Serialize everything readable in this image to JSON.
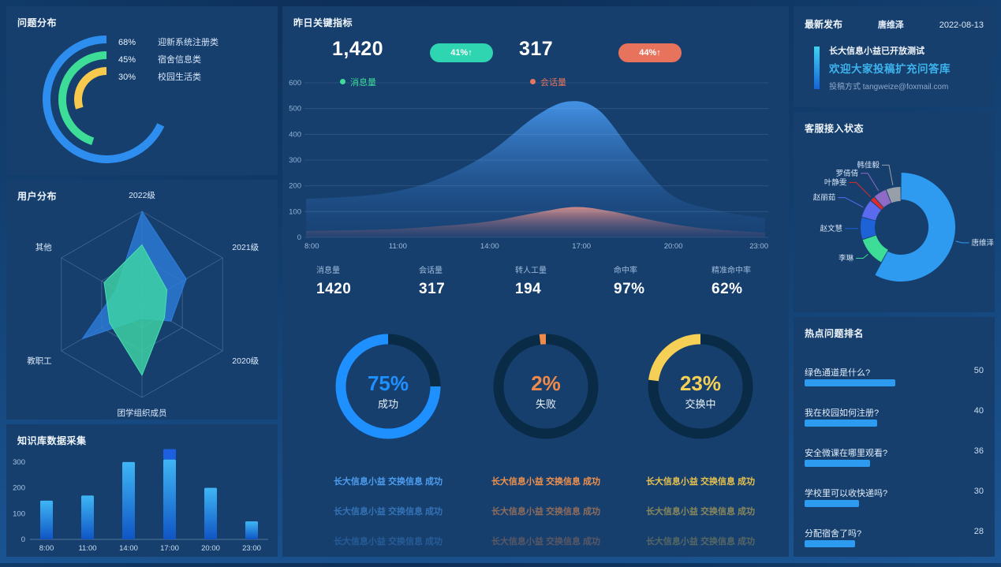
{
  "panels": {
    "problem": {
      "title": "问题分布"
    },
    "radar": {
      "title": "用户分布"
    },
    "collect": {
      "title": "知识库数据采集"
    },
    "kpi": {
      "title": "昨日关键指标",
      "headline": [
        {
          "value": "1,420",
          "badge": "41%↑",
          "badge_color": "#2fd5b0"
        },
        {
          "value": "317",
          "badge": "44%↑",
          "badge_color": "#e8735c"
        }
      ],
      "legend": [
        {
          "label": "消息量",
          "color": "#3ddc97"
        },
        {
          "label": "会话量",
          "color": "#e8735c"
        }
      ],
      "stats": [
        {
          "label": "消息量",
          "value": "1420"
        },
        {
          "label": "会话量",
          "value": "317"
        },
        {
          "label": "转人工量",
          "value": "194"
        },
        {
          "label": "命中率",
          "value": "97%"
        },
        {
          "label": "精准命中率",
          "value": "62%"
        }
      ],
      "tickers": {
        "text": "长大信息小益 交换信息 成功",
        "columns": [
          {
            "color": "#4d9df0"
          },
          {
            "color": "#f0914d"
          },
          {
            "color": "#e6c14d"
          }
        ],
        "opacities": [
          1,
          0.55,
          0.3
        ]
      }
    },
    "news": {
      "title": "最新发布",
      "author": "唐维泽",
      "date": "2022-08-13",
      "line1": "长大信息小益已开放测试",
      "line2": "欢迎大家投稿扩充问答库",
      "line3": "投稿方式 tangweize@foxmail.com"
    },
    "agents": {
      "title": "客服接入状态"
    },
    "hot": {
      "title": "热点问题排名"
    }
  },
  "chart_data": [
    {
      "id": "problem_distribution",
      "type": "pie",
      "variant": "concentric-arcs",
      "title": "问题分布",
      "items": [
        {
          "label": "迎新系统注册类",
          "pct": 68,
          "color": "#2e8ef0"
        },
        {
          "label": "宿舍信息类",
          "pct": 45,
          "color": "#3ddc97"
        },
        {
          "label": "校园生活类",
          "pct": 30,
          "color": "#f7c94c"
        }
      ]
    },
    {
      "id": "user_radar",
      "type": "line",
      "variant": "radar",
      "title": "用户分布",
      "axes": [
        "2022级",
        "2021级",
        "2020级",
        "团学组织成员",
        "教职工",
        "其他"
      ],
      "max": 100,
      "series": [
        {
          "name": "blue",
          "color": "#2d7ddd",
          "fill": "rgba(45,125,221,0.78)",
          "values": [
            100,
            55,
            36,
            15,
            74,
            32
          ]
        },
        {
          "name": "green",
          "color": "#45e0b0",
          "fill": "rgba(61,214,165,0.82)",
          "values": [
            64,
            31,
            28,
            76,
            40,
            47
          ]
        }
      ]
    },
    {
      "id": "kb_collect",
      "type": "bar",
      "title": "知识库数据采集",
      "categories": [
        "8:00",
        "11:00",
        "14:00",
        "17:00",
        "20:00",
        "23:00"
      ],
      "series": [
        {
          "name": "base",
          "values": [
            150,
            170,
            300,
            310,
            200,
            70
          ]
        },
        {
          "name": "cap",
          "values": [
            0,
            0,
            0,
            40,
            0,
            0
          ],
          "color": "#1c5fe0"
        }
      ],
      "ylim": [
        0,
        350
      ],
      "yticks": [
        0,
        100,
        200,
        300
      ]
    },
    {
      "id": "kpi_area",
      "type": "area",
      "title": "昨日关键指标",
      "xticks": [
        "8:00",
        "11:00",
        "14:00",
        "17:00",
        "20:00",
        "23:00"
      ],
      "xtick_hours": [
        8,
        11,
        14,
        17,
        20,
        23
      ],
      "yticks": [
        0,
        100,
        200,
        300,
        400,
        500,
        600
      ],
      "ylim": [
        0,
        600
      ],
      "series": [
        {
          "name": "消息量",
          "peak": 530,
          "points": [
            [
              8,
              150
            ],
            [
              9.5,
              158
            ],
            [
              11,
              180
            ],
            [
              12.5,
              235
            ],
            [
              14,
              330
            ],
            [
              15.5,
              470
            ],
            [
              16.6,
              528
            ],
            [
              17.6,
              490
            ],
            [
              18.8,
              310
            ],
            [
              20,
              160
            ],
            [
              21.5,
              103
            ],
            [
              23,
              75
            ]
          ],
          "top_color": "rgba(70,150,235,0.95)",
          "bottom_color": "rgba(30,75,135,0.22)"
        },
        {
          "name": "会话量",
          "peak": 120,
          "points": [
            [
              8,
              25
            ],
            [
              9.5,
              28
            ],
            [
              11,
              33
            ],
            [
              12.5,
              45
            ],
            [
              14,
              62
            ],
            [
              15.5,
              95
            ],
            [
              16.8,
              118
            ],
            [
              18,
              100
            ],
            [
              19.5,
              62
            ],
            [
              21,
              35
            ],
            [
              23,
              18
            ]
          ],
          "top_color": "rgba(235,150,140,0.85)",
          "bottom_color": "rgba(120,80,110,0.12)"
        }
      ]
    },
    {
      "id": "exchange_gauges",
      "type": "pie",
      "variant": "gauge",
      "items": [
        {
          "pct": 75,
          "label": "成功",
          "color": "#1e90ff"
        },
        {
          "pct": 2,
          "label": "失败",
          "color": "#f08a4b"
        },
        {
          "pct": 23,
          "label": "交换中",
          "color": "#f5cf56"
        }
      ]
    },
    {
      "id": "agents_donut",
      "type": "pie",
      "variant": "donut",
      "title": "客服接入状态",
      "items": [
        {
          "name": "唐维泽",
          "share": 58,
          "color": "#2e9bf0",
          "emphasis": true
        },
        {
          "name": "李琳",
          "share": 12,
          "color": "#3ddc97"
        },
        {
          "name": "赵文慧",
          "share": 9,
          "color": "#1e62d8"
        },
        {
          "name": "赵丽茹",
          "share": 7.5,
          "color": "#5b6bf0"
        },
        {
          "name": "叶静雯",
          "share": 2,
          "color": "#e02a2a"
        },
        {
          "name": "罗倩倩",
          "share": 5.5,
          "color": "#8f6bc8"
        },
        {
          "name": "韩佳毅",
          "share": 6,
          "color": "#97a0a8"
        }
      ]
    },
    {
      "id": "hot_rank",
      "type": "bar",
      "variant": "horizontal-rank",
      "title": "热点问题排名",
      "categories": [
        "绿色通道是什么?",
        "我在校园如何注册?",
        "安全微课在哪里观看?",
        "学校里可以收快递吗?",
        "分配宿舍了吗?"
      ],
      "values": [
        50,
        40,
        36,
        30,
        28
      ],
      "max": 50,
      "bar_color": "#2d9bf0"
    }
  ]
}
